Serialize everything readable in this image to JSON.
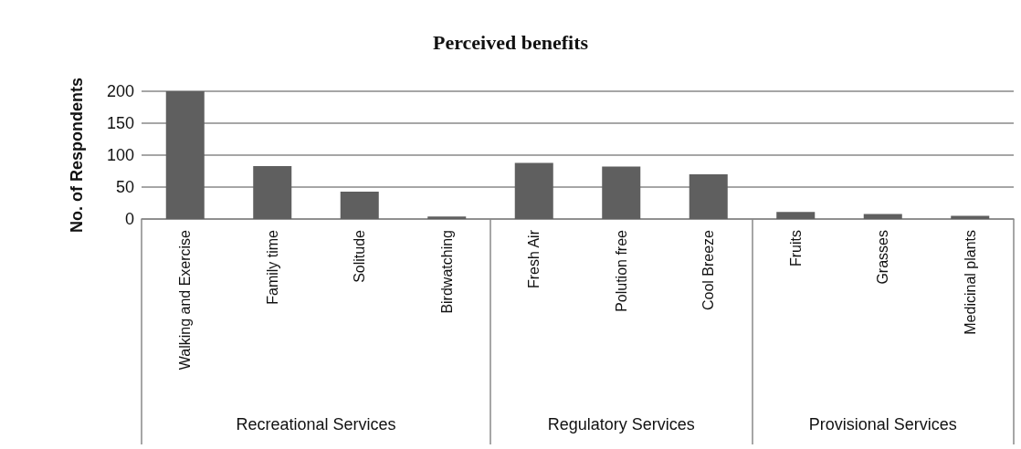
{
  "chart_data": {
    "type": "bar",
    "title": "Perceived benefits",
    "ylabel": "No. of Respondents",
    "categories": [
      "Walking and Exercise",
      "Family time",
      "Solitude",
      "Birdwatching",
      "Fresh Air",
      "Polution free",
      "Cool Breeze",
      "Fruits",
      "Grasses",
      "Medicinal plants"
    ],
    "values": [
      200,
      83,
      43,
      4,
      88,
      82,
      70,
      11,
      8,
      5
    ],
    "color": "#5f5f5f",
    "ylim": [
      0,
      200
    ],
    "yticks": [
      0,
      50,
      100,
      150,
      200
    ],
    "grid": "y",
    "annotations": [
      "Recreational Services",
      "Regulatory Services",
      "Provisional Services"
    ]
  }
}
